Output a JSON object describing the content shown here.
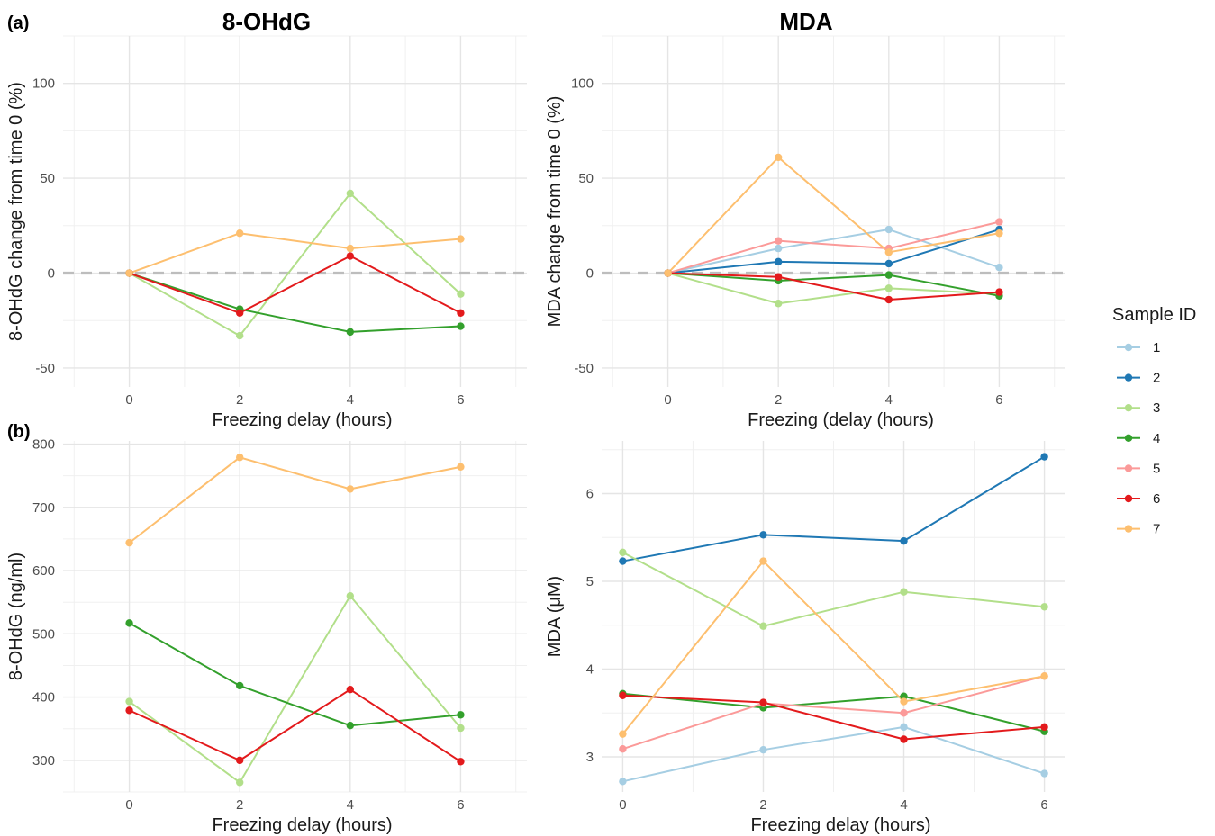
{
  "figure": {
    "tag_a": "(a)",
    "tag_b": "(b)"
  },
  "legend": {
    "title": "Sample ID",
    "entries": [
      {
        "id": "1",
        "color": "#a6cee3"
      },
      {
        "id": "2",
        "color": "#1f78b4"
      },
      {
        "id": "3",
        "color": "#b2df8a"
      },
      {
        "id": "4",
        "color": "#33a02c"
      },
      {
        "id": "5",
        "color": "#fb9a99"
      },
      {
        "id": "6",
        "color": "#e31a1c"
      },
      {
        "id": "7",
        "color": "#fdbf6f"
      }
    ]
  },
  "chart_data": [
    {
      "type": "line",
      "title": "8-OHdG",
      "xlabel": "Freezing delay (hours)",
      "ylabel": "8-OHdG change from time 0 (%)",
      "x": [
        0,
        2,
        4,
        6
      ],
      "xlim": [
        -1.2,
        7.2
      ],
      "ylim": [
        -60,
        125
      ],
      "xticks": [
        0,
        2,
        4,
        6
      ],
      "yticks": [
        -50,
        0,
        50,
        100
      ],
      "grid": true,
      "reference_line": 0,
      "series": [
        {
          "name": "3",
          "color": "#b2df8a",
          "values": [
            0,
            -33,
            42,
            -11
          ]
        },
        {
          "name": "4",
          "color": "#33a02c",
          "values": [
            0,
            -19,
            -31,
            -28
          ]
        },
        {
          "name": "6",
          "color": "#e31a1c",
          "values": [
            0,
            -21,
            9,
            -21
          ]
        },
        {
          "name": "7",
          "color": "#fdbf6f",
          "values": [
            0,
            21,
            13,
            18
          ]
        }
      ]
    },
    {
      "type": "line",
      "title": "MDA",
      "xlabel": "Freezing (delay (hours)",
      "ylabel": "MDA change from time 0 (%)",
      "x": [
        0,
        2,
        4,
        6
      ],
      "xlim": [
        -1.2,
        7.2
      ],
      "ylim": [
        -60,
        125
      ],
      "xticks": [
        0,
        2,
        4,
        6
      ],
      "yticks": [
        -50,
        0,
        50,
        100
      ],
      "grid": true,
      "reference_line": 0,
      "series": [
        {
          "name": "1",
          "color": "#a6cee3",
          "values": [
            0,
            13,
            23,
            3
          ]
        },
        {
          "name": "2",
          "color": "#1f78b4",
          "values": [
            0,
            6,
            5,
            23
          ]
        },
        {
          "name": "3",
          "color": "#b2df8a",
          "values": [
            0,
            -16,
            -8,
            -11
          ]
        },
        {
          "name": "4",
          "color": "#33a02c",
          "values": [
            0,
            -4,
            -1,
            -12
          ]
        },
        {
          "name": "5",
          "color": "#fb9a99",
          "values": [
            0,
            17,
            13,
            27
          ]
        },
        {
          "name": "6",
          "color": "#e31a1c",
          "values": [
            0,
            -2,
            -14,
            -10
          ]
        },
        {
          "name": "7",
          "color": "#fdbf6f",
          "values": [
            0,
            61,
            11,
            21
          ]
        }
      ]
    },
    {
      "type": "line",
      "title": "",
      "xlabel": "Freezing delay (hours)",
      "ylabel": "8-OHdG (ng/ml)",
      "x": [
        0,
        2,
        4,
        6
      ],
      "xlim": [
        -1.2,
        7.2
      ],
      "ylim": [
        250,
        805
      ],
      "xticks": [
        0,
        2,
        4,
        6
      ],
      "yticks": [
        300,
        400,
        500,
        600,
        700,
        800
      ],
      "grid": true,
      "series": [
        {
          "name": "3",
          "color": "#b2df8a",
          "values": [
            393,
            265,
            560,
            351
          ]
        },
        {
          "name": "4",
          "color": "#33a02c",
          "values": [
            517,
            418,
            355,
            372
          ]
        },
        {
          "name": "6",
          "color": "#e31a1c",
          "values": [
            379,
            300,
            412,
            298
          ]
        },
        {
          "name": "7",
          "color": "#fdbf6f",
          "values": [
            644,
            779,
            729,
            764
          ]
        }
      ]
    },
    {
      "type": "line",
      "title": "",
      "xlabel": "Freezing delay (hours)",
      "ylabel": "MDA (μM)",
      "x": [
        0,
        2,
        4,
        6
      ],
      "xlim": [
        -0.3,
        6.3
      ],
      "ylim": [
        2.6,
        6.6
      ],
      "xticks": [
        0,
        2,
        4,
        6
      ],
      "yticks": [
        3,
        4,
        5,
        6
      ],
      "grid": true,
      "series": [
        {
          "name": "1",
          "color": "#a6cee3",
          "values": [
            2.72,
            3.08,
            3.34,
            2.81
          ]
        },
        {
          "name": "2",
          "color": "#1f78b4",
          "values": [
            5.23,
            5.53,
            5.46,
            6.42
          ]
        },
        {
          "name": "3",
          "color": "#b2df8a",
          "values": [
            5.33,
            4.49,
            4.88,
            4.71
          ]
        },
        {
          "name": "4",
          "color": "#33a02c",
          "values": [
            3.72,
            3.56,
            3.69,
            3.29
          ]
        },
        {
          "name": "5",
          "color": "#fb9a99",
          "values": [
            3.09,
            3.61,
            3.5,
            3.92
          ]
        },
        {
          "name": "6",
          "color": "#e31a1c",
          "values": [
            3.7,
            3.62,
            3.2,
            3.34
          ]
        },
        {
          "name": "7",
          "color": "#fdbf6f",
          "values": [
            3.26,
            5.23,
            3.63,
            3.92
          ]
        }
      ]
    }
  ]
}
